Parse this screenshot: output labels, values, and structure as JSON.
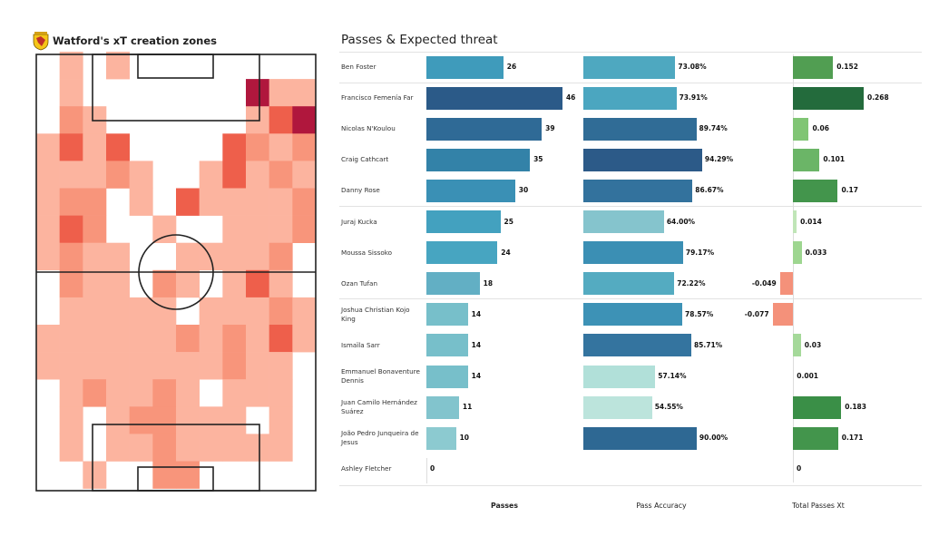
{
  "heatmap": {
    "title": "Watford's xT creation zones",
    "colors": [
      "#ffffff",
      "#fcb49f",
      "#f8957b",
      "#ee5f4b",
      "#b0173d"
    ],
    "grid": [
      [
        0,
        1,
        0,
        1,
        0,
        0,
        0,
        0,
        0,
        0,
        0,
        0
      ],
      [
        0,
        1,
        0,
        0,
        0,
        0,
        0,
        0,
        0,
        4,
        1,
        1
      ],
      [
        0,
        2,
        1,
        0,
        0,
        0,
        0,
        0,
        0,
        1,
        3,
        4
      ],
      [
        1,
        3,
        1,
        3,
        0,
        0,
        0,
        0,
        3,
        2,
        1,
        2
      ],
      [
        1,
        1,
        1,
        2,
        1,
        0,
        0,
        1,
        3,
        1,
        2,
        1
      ],
      [
        1,
        2,
        2,
        0,
        1,
        0,
        3,
        1,
        1,
        1,
        1,
        2
      ],
      [
        1,
        3,
        2,
        0,
        0,
        1,
        0,
        0,
        1,
        1,
        1,
        2
      ],
      [
        1,
        2,
        1,
        1,
        0,
        0,
        1,
        1,
        1,
        1,
        2,
        0
      ],
      [
        0,
        2,
        1,
        1,
        0,
        2,
        1,
        0,
        1,
        3,
        1,
        0
      ],
      [
        0,
        1,
        1,
        1,
        1,
        1,
        0,
        1,
        1,
        1,
        2,
        1
      ],
      [
        1,
        1,
        1,
        1,
        1,
        1,
        2,
        1,
        2,
        1,
        3,
        1
      ],
      [
        1,
        1,
        1,
        1,
        1,
        1,
        1,
        1,
        2,
        1,
        1,
        0
      ],
      [
        0,
        1,
        2,
        1,
        1,
        2,
        1,
        0,
        1,
        1,
        1,
        0
      ],
      [
        0,
        1,
        0,
        1,
        2,
        2,
        1,
        1,
        1,
        0,
        1,
        0
      ],
      [
        0,
        1,
        0,
        1,
        1,
        2,
        1,
        1,
        1,
        1,
        1,
        0
      ],
      [
        0,
        0,
        1,
        0,
        0,
        2,
        2,
        0,
        0,
        0,
        0,
        0
      ]
    ]
  },
  "chart_data": {
    "type": "bar",
    "title": "Passes & Expected threat",
    "columns": [
      "Passes",
      "Pass Accuracy",
      "Total Passes Xt"
    ],
    "rows": [
      {
        "name": "Ben Foster",
        "passes": 26,
        "passes_label": "26",
        "pass_color": "#3f9bbb",
        "accuracy": 73.08,
        "accuracy_label": "73.08%",
        "acc_color": "#4ea8c0",
        "xt": 0.152,
        "xt_label": "0.152",
        "xt_color": "#519e52"
      },
      {
        "name": "Francisco Femenía Far",
        "passes": 46,
        "passes_label": "46",
        "pass_color": "#2b5a88",
        "accuracy": 73.91,
        "accuracy_label": "73.91%",
        "acc_color": "#4ba6c0",
        "xt": 0.268,
        "xt_label": "0.268",
        "xt_color": "#236b3c"
      },
      {
        "name": "Nicolas N'Koulou",
        "passes": 39,
        "passes_label": "39",
        "pass_color": "#2f6a96",
        "accuracy": 89.74,
        "accuracy_label": "89.74%",
        "acc_color": "#306c96",
        "xt": 0.06,
        "xt_label": "0.06",
        "xt_color": "#80c574"
      },
      {
        "name": "Craig Cathcart",
        "passes": 35,
        "passes_label": "35",
        "pass_color": "#3382a8",
        "accuracy": 94.29,
        "accuracy_label": "94.29%",
        "acc_color": "#2c5a88",
        "xt": 0.101,
        "xt_label": "0.101",
        "xt_color": "#6bb567"
      },
      {
        "name": "Danny Rose",
        "passes": 30,
        "passes_label": "30",
        "pass_color": "#3a90b5",
        "accuracy": 86.67,
        "accuracy_label": "86.67%",
        "acc_color": "#33729d",
        "xt": 0.17,
        "xt_label": "0.17",
        "xt_color": "#43954c"
      },
      {
        "name": "Juraj Kucka",
        "passes": 25,
        "passes_label": "25",
        "pass_color": "#43a1bf",
        "accuracy": 64.0,
        "accuracy_label": "64.00%",
        "acc_color": "#85c4cd",
        "xt": 0.014,
        "xt_label": "0.014",
        "xt_color": "#c0e5b7"
      },
      {
        "name": "Moussa Sissoko",
        "passes": 24,
        "passes_label": "24",
        "pass_color": "#47a5c1",
        "accuracy": 79.17,
        "accuracy_label": "79.17%",
        "acc_color": "#3b8fb4",
        "xt": 0.033,
        "xt_label": "0.033",
        "xt_color": "#9ed690"
      },
      {
        "name": "Ozan Tufan",
        "passes": 18,
        "passes_label": "18",
        "pass_color": "#62afc4",
        "accuracy": 72.22,
        "accuracy_label": "72.22%",
        "acc_color": "#54abc1",
        "xt": -0.049,
        "xt_label": "-0.049",
        "xt_color": "#f4917a"
      },
      {
        "name": "Joshua Christian Kojo King",
        "passes": 14,
        "passes_label": "14",
        "pass_color": "#77bfca",
        "accuracy": 78.57,
        "accuracy_label": "78.57%",
        "acc_color": "#3d92b6",
        "xt": -0.077,
        "xt_label": "-0.077",
        "xt_color": "#f4917a"
      },
      {
        "name": "Ismaïla Sarr",
        "passes": 14,
        "passes_label": "14",
        "pass_color": "#77bfca",
        "accuracy": 85.71,
        "accuracy_label": "85.71%",
        "acc_color": "#34749f",
        "xt": 0.03,
        "xt_label": "0.03",
        "xt_color": "#a5d99a"
      },
      {
        "name": "Emmanuel Bonaventure Dennis",
        "passes": 14,
        "passes_label": "14",
        "pass_color": "#77bfca",
        "accuracy": 57.14,
        "accuracy_label": "57.14%",
        "acc_color": "#b1e0d9",
        "xt": 0.001,
        "xt_label": "0.001",
        "xt_color": "#e5f5e0"
      },
      {
        "name": "Juan Camilo Hernández Suárez",
        "passes": 11,
        "passes_label": "11",
        "pass_color": "#82c4cd",
        "accuracy": 54.55,
        "accuracy_label": "54.55%",
        "acc_color": "#bce4dc",
        "xt": 0.183,
        "xt_label": "0.183",
        "xt_color": "#3a8f47"
      },
      {
        "name": "João Pedro Junqueira de Jesus",
        "passes": 10,
        "passes_label": "10",
        "pass_color": "#8ccad0",
        "accuracy": 90.0,
        "accuracy_label": "90.00%",
        "acc_color": "#2e6893",
        "xt": 0.171,
        "xt_label": "0.171",
        "xt_color": "#43954c"
      },
      {
        "name": "Ashley Fletcher",
        "passes": 0,
        "passes_label": "0",
        "pass_color": "#8ccad0",
        "accuracy": 0,
        "accuracy_label": "",
        "acc_color": "#bce4dc",
        "xt": 0,
        "xt_label": "0",
        "xt_color": "#e5f5e0"
      }
    ]
  }
}
